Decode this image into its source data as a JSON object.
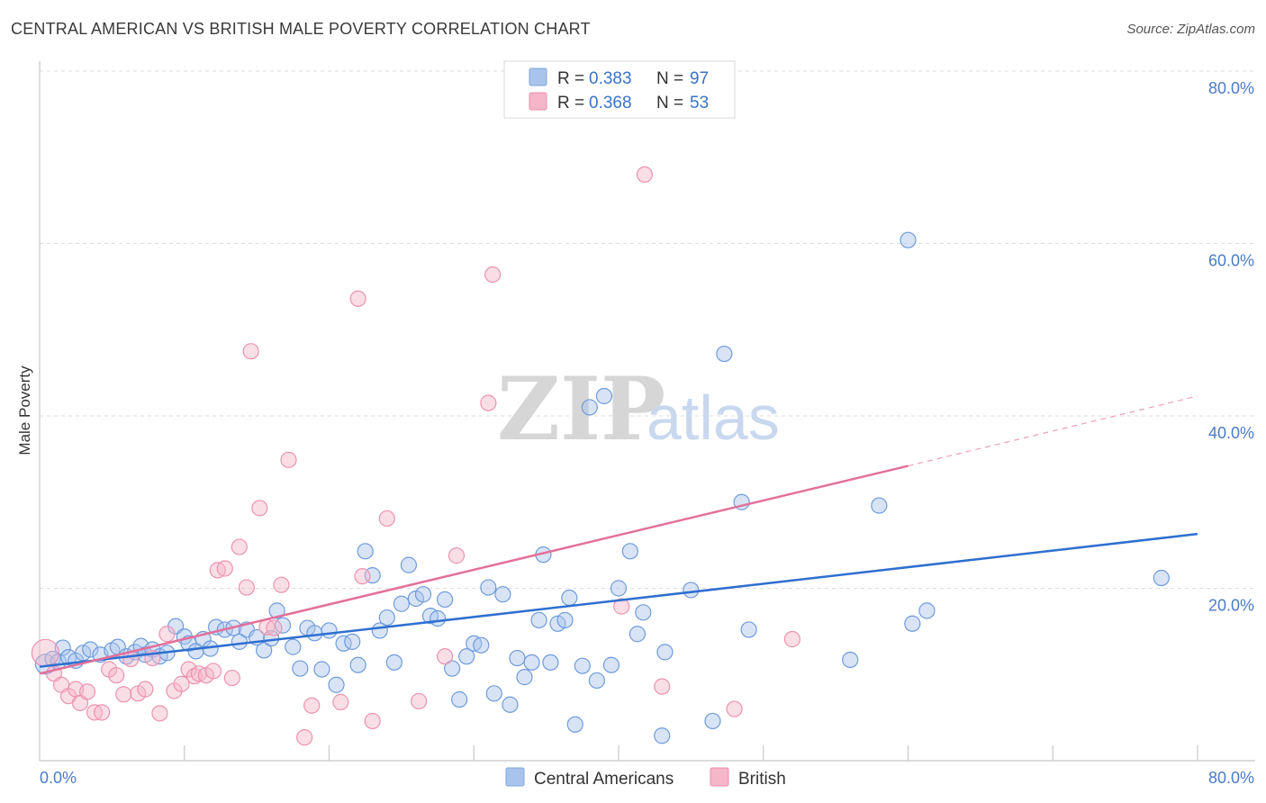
{
  "title": "CENTRAL AMERICAN VS BRITISH MALE POVERTY CORRELATION CHART",
  "source": "Source: ZipAtlas.com",
  "watermark": {
    "zip": "ZIP",
    "atlas": "atlas"
  },
  "legend": {
    "rows": [
      {
        "r_label": "R =",
        "r_value": "0.383",
        "n_label": "N =",
        "n_value": "97",
        "color": "#a9c4ec"
      },
      {
        "r_label": "R =",
        "r_value": "0.368",
        "n_label": "N =",
        "n_value": "53",
        "color": "#f4b6c8"
      }
    ]
  },
  "chart_data": {
    "type": "scatter",
    "title": "CENTRAL AMERICAN VS BRITISH MALE POVERTY CORRELATION CHART",
    "xlabel": "",
    "ylabel": "Male Poverty",
    "xlim": [
      0,
      80
    ],
    "ylim": [
      0,
      80
    ],
    "x_tick_labels": [
      "0.0%",
      "80.0%"
    ],
    "y_tick_labels": [
      "20.0%",
      "40.0%",
      "60.0%",
      "80.0%"
    ],
    "y_ticks": [
      20,
      40,
      60,
      80
    ],
    "grid": true,
    "legend_placement": "top-center",
    "series": [
      {
        "name": "Central Americans",
        "color": "#5b8fd8",
        "trend": {
          "x0": 0,
          "y0": 10.9,
          "x1": 80,
          "y1": 26.3
        },
        "points": [
          [
            0.4,
            11.2
          ],
          [
            0.9,
            11.8
          ],
          [
            1.3,
            11.5
          ],
          [
            1.6,
            13.1
          ],
          [
            2.0,
            12.0
          ],
          [
            2.5,
            11.6
          ],
          [
            3.0,
            12.5
          ],
          [
            3.5,
            12.9
          ],
          [
            4.2,
            12.3
          ],
          [
            5.0,
            12.8
          ],
          [
            5.4,
            13.2
          ],
          [
            6.0,
            12.1
          ],
          [
            6.6,
            12.6
          ],
          [
            7.0,
            13.3
          ],
          [
            7.3,
            12.3
          ],
          [
            7.8,
            12.9
          ],
          [
            8.3,
            12.1
          ],
          [
            8.8,
            12.5
          ],
          [
            9.4,
            15.6
          ],
          [
            10.0,
            14.4
          ],
          [
            10.3,
            13.6
          ],
          [
            10.8,
            12.7
          ],
          [
            11.3,
            14.1
          ],
          [
            11.8,
            13.0
          ],
          [
            12.2,
            15.5
          ],
          [
            12.8,
            15.2
          ],
          [
            13.4,
            15.4
          ],
          [
            13.8,
            13.8
          ],
          [
            14.3,
            15.2
          ],
          [
            15.0,
            14.3
          ],
          [
            15.5,
            12.8
          ],
          [
            16.0,
            14.2
          ],
          [
            16.4,
            17.4
          ],
          [
            16.8,
            15.7
          ],
          [
            17.5,
            13.2
          ],
          [
            18.0,
            10.7
          ],
          [
            18.5,
            15.4
          ],
          [
            19.0,
            14.8
          ],
          [
            19.5,
            10.6
          ],
          [
            20.0,
            15.1
          ],
          [
            20.5,
            8.8
          ],
          [
            21.0,
            13.6
          ],
          [
            21.6,
            13.8
          ],
          [
            22.0,
            11.1
          ],
          [
            22.5,
            24.3
          ],
          [
            23.0,
            21.5
          ],
          [
            23.5,
            15.1
          ],
          [
            24.0,
            16.6
          ],
          [
            24.5,
            11.4
          ],
          [
            25.0,
            18.2
          ],
          [
            25.5,
            22.7
          ],
          [
            26.0,
            18.8
          ],
          [
            26.5,
            19.3
          ],
          [
            27.0,
            16.8
          ],
          [
            27.5,
            16.5
          ],
          [
            28.0,
            18.7
          ],
          [
            28.5,
            10.7
          ],
          [
            29.0,
            7.1
          ],
          [
            29.5,
            12.1
          ],
          [
            30.0,
            13.6
          ],
          [
            30.5,
            13.4
          ],
          [
            31.0,
            20.1
          ],
          [
            31.4,
            7.8
          ],
          [
            32.0,
            19.3
          ],
          [
            32.5,
            6.5
          ],
          [
            33.0,
            11.9
          ],
          [
            33.5,
            9.7
          ],
          [
            34.0,
            11.4
          ],
          [
            34.5,
            16.3
          ],
          [
            34.8,
            23.9
          ],
          [
            35.3,
            11.4
          ],
          [
            35.8,
            15.9
          ],
          [
            36.3,
            16.3
          ],
          [
            36.6,
            18.9
          ],
          [
            37.0,
            4.2
          ],
          [
            37.5,
            11.0
          ],
          [
            38.0,
            41.0
          ],
          [
            38.5,
            9.3
          ],
          [
            39.0,
            42.3
          ],
          [
            39.5,
            11.1
          ],
          [
            40.0,
            20.0
          ],
          [
            40.8,
            24.3
          ],
          [
            41.3,
            14.7
          ],
          [
            41.7,
            17.2
          ],
          [
            43.0,
            2.9
          ],
          [
            43.2,
            12.6
          ],
          [
            45.0,
            19.8
          ],
          [
            46.5,
            4.6
          ],
          [
            47.3,
            47.2
          ],
          [
            48.5,
            30.0
          ],
          [
            49.0,
            15.2
          ],
          [
            56.0,
            11.7
          ],
          [
            58.0,
            29.6
          ],
          [
            60.0,
            60.4
          ],
          [
            60.3,
            15.9
          ],
          [
            61.3,
            17.4
          ],
          [
            77.5,
            21.2
          ]
        ]
      },
      {
        "name": "British",
        "color": "#f093b1",
        "trend": {
          "x0": 0,
          "y0": 10.1,
          "x1": 60,
          "y1": 34.2,
          "x_dash_end": 80,
          "y_dash_end": 42.3
        },
        "points": [
          [
            0.4,
            12.5
          ],
          [
            1.0,
            10.1
          ],
          [
            1.5,
            8.8
          ],
          [
            2.0,
            7.5
          ],
          [
            2.5,
            8.3
          ],
          [
            2.8,
            6.7
          ],
          [
            3.3,
            8.0
          ],
          [
            3.8,
            5.6
          ],
          [
            4.3,
            5.6
          ],
          [
            4.8,
            10.6
          ],
          [
            5.3,
            9.9
          ],
          [
            5.8,
            7.7
          ],
          [
            6.3,
            11.8
          ],
          [
            6.8,
            7.8
          ],
          [
            7.3,
            8.3
          ],
          [
            7.8,
            11.9
          ],
          [
            8.3,
            5.5
          ],
          [
            8.8,
            14.7
          ],
          [
            9.3,
            8.1
          ],
          [
            9.8,
            8.9
          ],
          [
            10.3,
            10.6
          ],
          [
            10.7,
            9.8
          ],
          [
            11.0,
            10.1
          ],
          [
            11.5,
            9.9
          ],
          [
            12.0,
            10.4
          ],
          [
            12.3,
            22.1
          ],
          [
            12.8,
            22.3
          ],
          [
            13.3,
            9.6
          ],
          [
            13.8,
            24.8
          ],
          [
            14.3,
            20.1
          ],
          [
            14.6,
            47.5
          ],
          [
            15.2,
            29.3
          ],
          [
            15.7,
            15.5
          ],
          [
            16.2,
            15.4
          ],
          [
            16.7,
            20.4
          ],
          [
            17.2,
            34.9
          ],
          [
            18.3,
            2.7
          ],
          [
            18.8,
            6.4
          ],
          [
            20.8,
            6.8
          ],
          [
            22.0,
            53.6
          ],
          [
            22.3,
            21.4
          ],
          [
            23.0,
            4.6
          ],
          [
            24.0,
            28.1
          ],
          [
            26.2,
            6.9
          ],
          [
            28.0,
            12.1
          ],
          [
            28.8,
            23.8
          ],
          [
            31.0,
            41.5
          ],
          [
            31.3,
            56.4
          ],
          [
            40.2,
            17.9
          ],
          [
            41.8,
            68.0
          ],
          [
            43.0,
            8.6
          ],
          [
            48.0,
            6.0
          ],
          [
            52.0,
            14.1
          ]
        ]
      }
    ]
  },
  "bottom_legend": [
    {
      "label": "Central Americans",
      "color": "#a9c4ec"
    },
    {
      "label": "British",
      "color": "#f4b6c8"
    }
  ]
}
